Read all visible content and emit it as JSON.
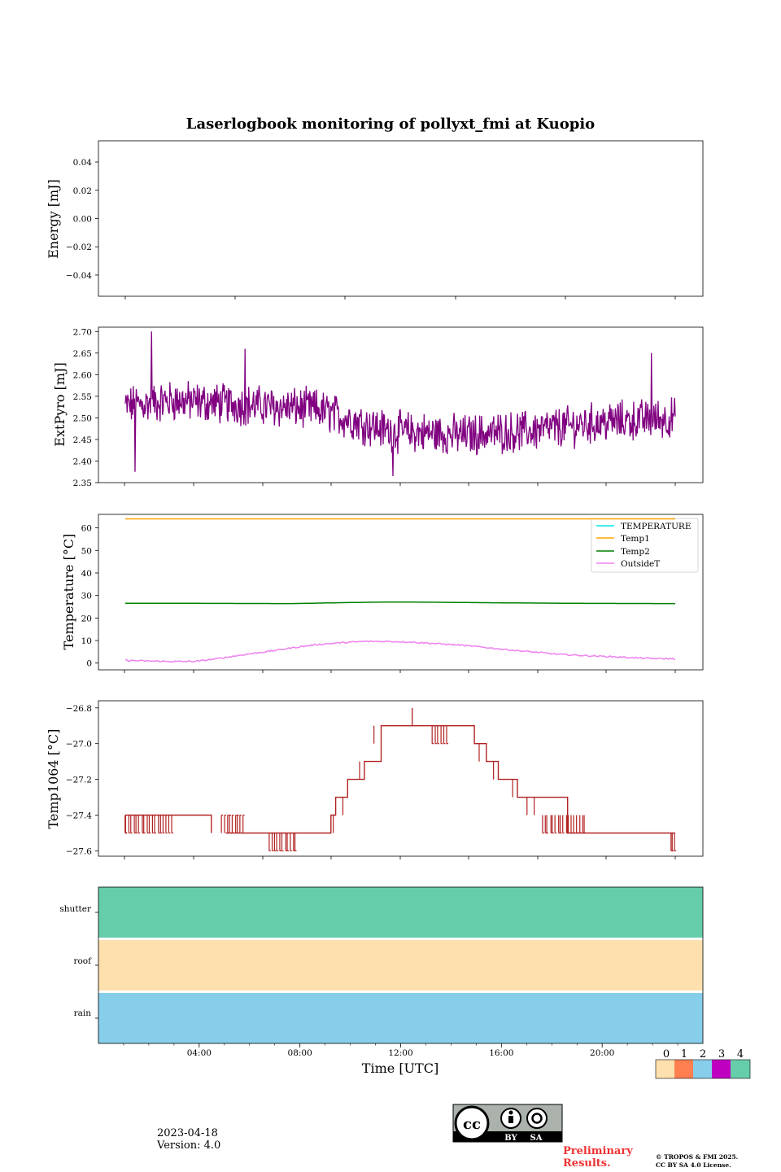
{
  "title": "Laserlogbook monitoring of pollyxt_fmi at Kuopio",
  "footer": {
    "date": "2023-04-18",
    "version": "Version: 4.0",
    "preliminary_line1": "Preliminary",
    "preliminary_line2": "Results.",
    "copyright_line1": "© TROPOS & FMI 2025.",
    "copyright_line2": "CC BY SA 4.0 License.",
    "license_badge": {
      "main": "cc",
      "by": "BY",
      "sa": "SA"
    }
  },
  "colors": {
    "extpyro": "#800080",
    "temperature": "#00e5e5",
    "temp1": "#ffa500",
    "temp2": "#008000",
    "outsideT": "#ee82ee",
    "temp1064": "#b22222",
    "flag0": "#fde0ad",
    "flag1": "#ff7f50",
    "flag2": "#87ceeb",
    "flag3": "#c000c0",
    "flag4": "#66cdaa",
    "preliminary": "#ee3333"
  },
  "chart_data": [
    {
      "type": "line",
      "name": "energy",
      "title": "",
      "ylabel": "Energy [mJ]",
      "ylim": [
        -0.055,
        0.055
      ],
      "yticks": [
        "0.04",
        "0.02",
        "0.00",
        "−0.02",
        "−0.04"
      ],
      "ytick_values": [
        0.04,
        0.02,
        0.0,
        -0.02,
        -0.04
      ],
      "series": []
    },
    {
      "type": "line",
      "name": "extpyro",
      "ylabel": "ExtPyro [mJ]",
      "ylim": [
        2.35,
        2.71
      ],
      "yticks": [
        "2.70",
        "2.65",
        "2.60",
        "2.55",
        "2.50",
        "2.45",
        "2.40",
        "2.35"
      ],
      "ytick_values": [
        2.7,
        2.65,
        2.6,
        2.55,
        2.5,
        2.45,
        2.4,
        2.35
      ],
      "series": [
        {
          "name": "ExtPyro",
          "noisy": true,
          "noise": 0.04,
          "x": [
            0.0,
            3.0,
            6.0,
            9.0,
            12.0,
            15.0,
            18.0,
            21.0,
            24.0
          ],
          "y": [
            2.52,
            2.54,
            2.53,
            2.52,
            2.47,
            2.46,
            2.47,
            2.49,
            2.5
          ],
          "spikes": [
            [
              2.1,
              2.7
            ],
            [
              1.4,
              2.375
            ],
            [
              12.2,
              2.365
            ],
            [
              23.0,
              2.65
            ],
            [
              6.0,
              2.66
            ]
          ]
        }
      ]
    },
    {
      "type": "line",
      "name": "temperature",
      "ylabel": "Temperature [°C]",
      "ylim": [
        -3,
        66
      ],
      "yticks": [
        "60",
        "50",
        "40",
        "30",
        "20",
        "10",
        "0"
      ],
      "ytick_values": [
        60,
        50,
        40,
        30,
        20,
        10,
        0
      ],
      "legend": [
        "TEMPERATURE",
        "Temp1",
        "Temp2",
        "OutsideT"
      ],
      "legend_position": "top-right",
      "series": [
        {
          "name": "TEMPERATURE",
          "x": [],
          "y": []
        },
        {
          "name": "Temp1",
          "x": [
            0,
            24
          ],
          "y": [
            64,
            64
          ]
        },
        {
          "name": "Temp2",
          "x": [
            0,
            4,
            8,
            10,
            12,
            14,
            16,
            20,
            24
          ],
          "y": [
            26.5,
            26.5,
            26.4,
            26.8,
            27.1,
            27.0,
            26.8,
            26.5,
            26.4
          ]
        },
        {
          "name": "OutsideT",
          "x": [
            0,
            1,
            2,
            3,
            4,
            5,
            6,
            7,
            8,
            9,
            10,
            11,
            12,
            13,
            14,
            15,
            16,
            17,
            18,
            19,
            20,
            21,
            22,
            23,
            24
          ],
          "y": [
            1.5,
            1.2,
            0.9,
            0.7,
            0.8,
            2.2,
            3.8,
            5.2,
            6.8,
            8.2,
            9.0,
            9.6,
            9.6,
            9.3,
            8.6,
            8.0,
            7.0,
            5.9,
            5.0,
            4.0,
            3.4,
            3.0,
            2.5,
            2.0,
            1.9
          ],
          "noisy": true,
          "noise": 0.3
        }
      ]
    },
    {
      "type": "line",
      "name": "temp1064",
      "ylabel": "Temp1064 [°C]",
      "ylim": [
        -27.63,
        -26.76
      ],
      "yticks": [
        "−26.8",
        "−27.0",
        "−27.2",
        "−27.4",
        "−27.6"
      ],
      "ytick_values": [
        -26.8,
        -27.0,
        -27.2,
        -27.4,
        -27.6
      ],
      "series": [
        {
          "name": "Temp1064",
          "step": true,
          "x": [
            0.0,
            4.5,
            4.6,
            5.2,
            8.8,
            9.6,
            9.8,
            10.3,
            11.0,
            11.7,
            13.6,
            15.6,
            16.1,
            16.6,
            17.4,
            19.5,
            24.0
          ],
          "y": [
            -27.4,
            -27.4,
            -27.5,
            -27.5,
            -27.5,
            -27.4,
            -27.3,
            -27.2,
            -27.1,
            -26.9,
            -26.9,
            -27.0,
            -27.1,
            -27.2,
            -27.3,
            -27.5,
            -27.5
          ],
          "glitch_ranges": [
            [
              0.3,
              3.0,
              -27.4,
              -27.5
            ],
            [
              5.0,
              6.0,
              -27.5,
              -27.4
            ],
            [
              7.0,
              8.2,
              -27.5,
              -27.6
            ],
            [
              13.8,
              14.5,
              -26.9,
              -27.0
            ],
            [
              18.4,
              20.3,
              -27.4,
              -27.5
            ],
            [
              23.8,
              24.0,
              -27.5,
              -27.6
            ]
          ],
          "spikes": [
            [
              13.0,
              -26.8
            ]
          ]
        }
      ]
    },
    {
      "type": "heatmap",
      "name": "status_flags",
      "rows": [
        "shutter",
        "roof",
        "rain"
      ],
      "row_values": [
        4,
        0,
        2
      ],
      "xlabel": "Time [UTC]",
      "xlim": [
        0,
        24
      ],
      "xticks": [
        "04:00",
        "08:00",
        "12:00",
        "16:00",
        "20:00"
      ],
      "xtick_values": [
        4,
        8,
        12,
        16,
        20
      ],
      "colorbar_labels": [
        "0",
        "1",
        "2",
        "3",
        "4"
      ]
    }
  ]
}
